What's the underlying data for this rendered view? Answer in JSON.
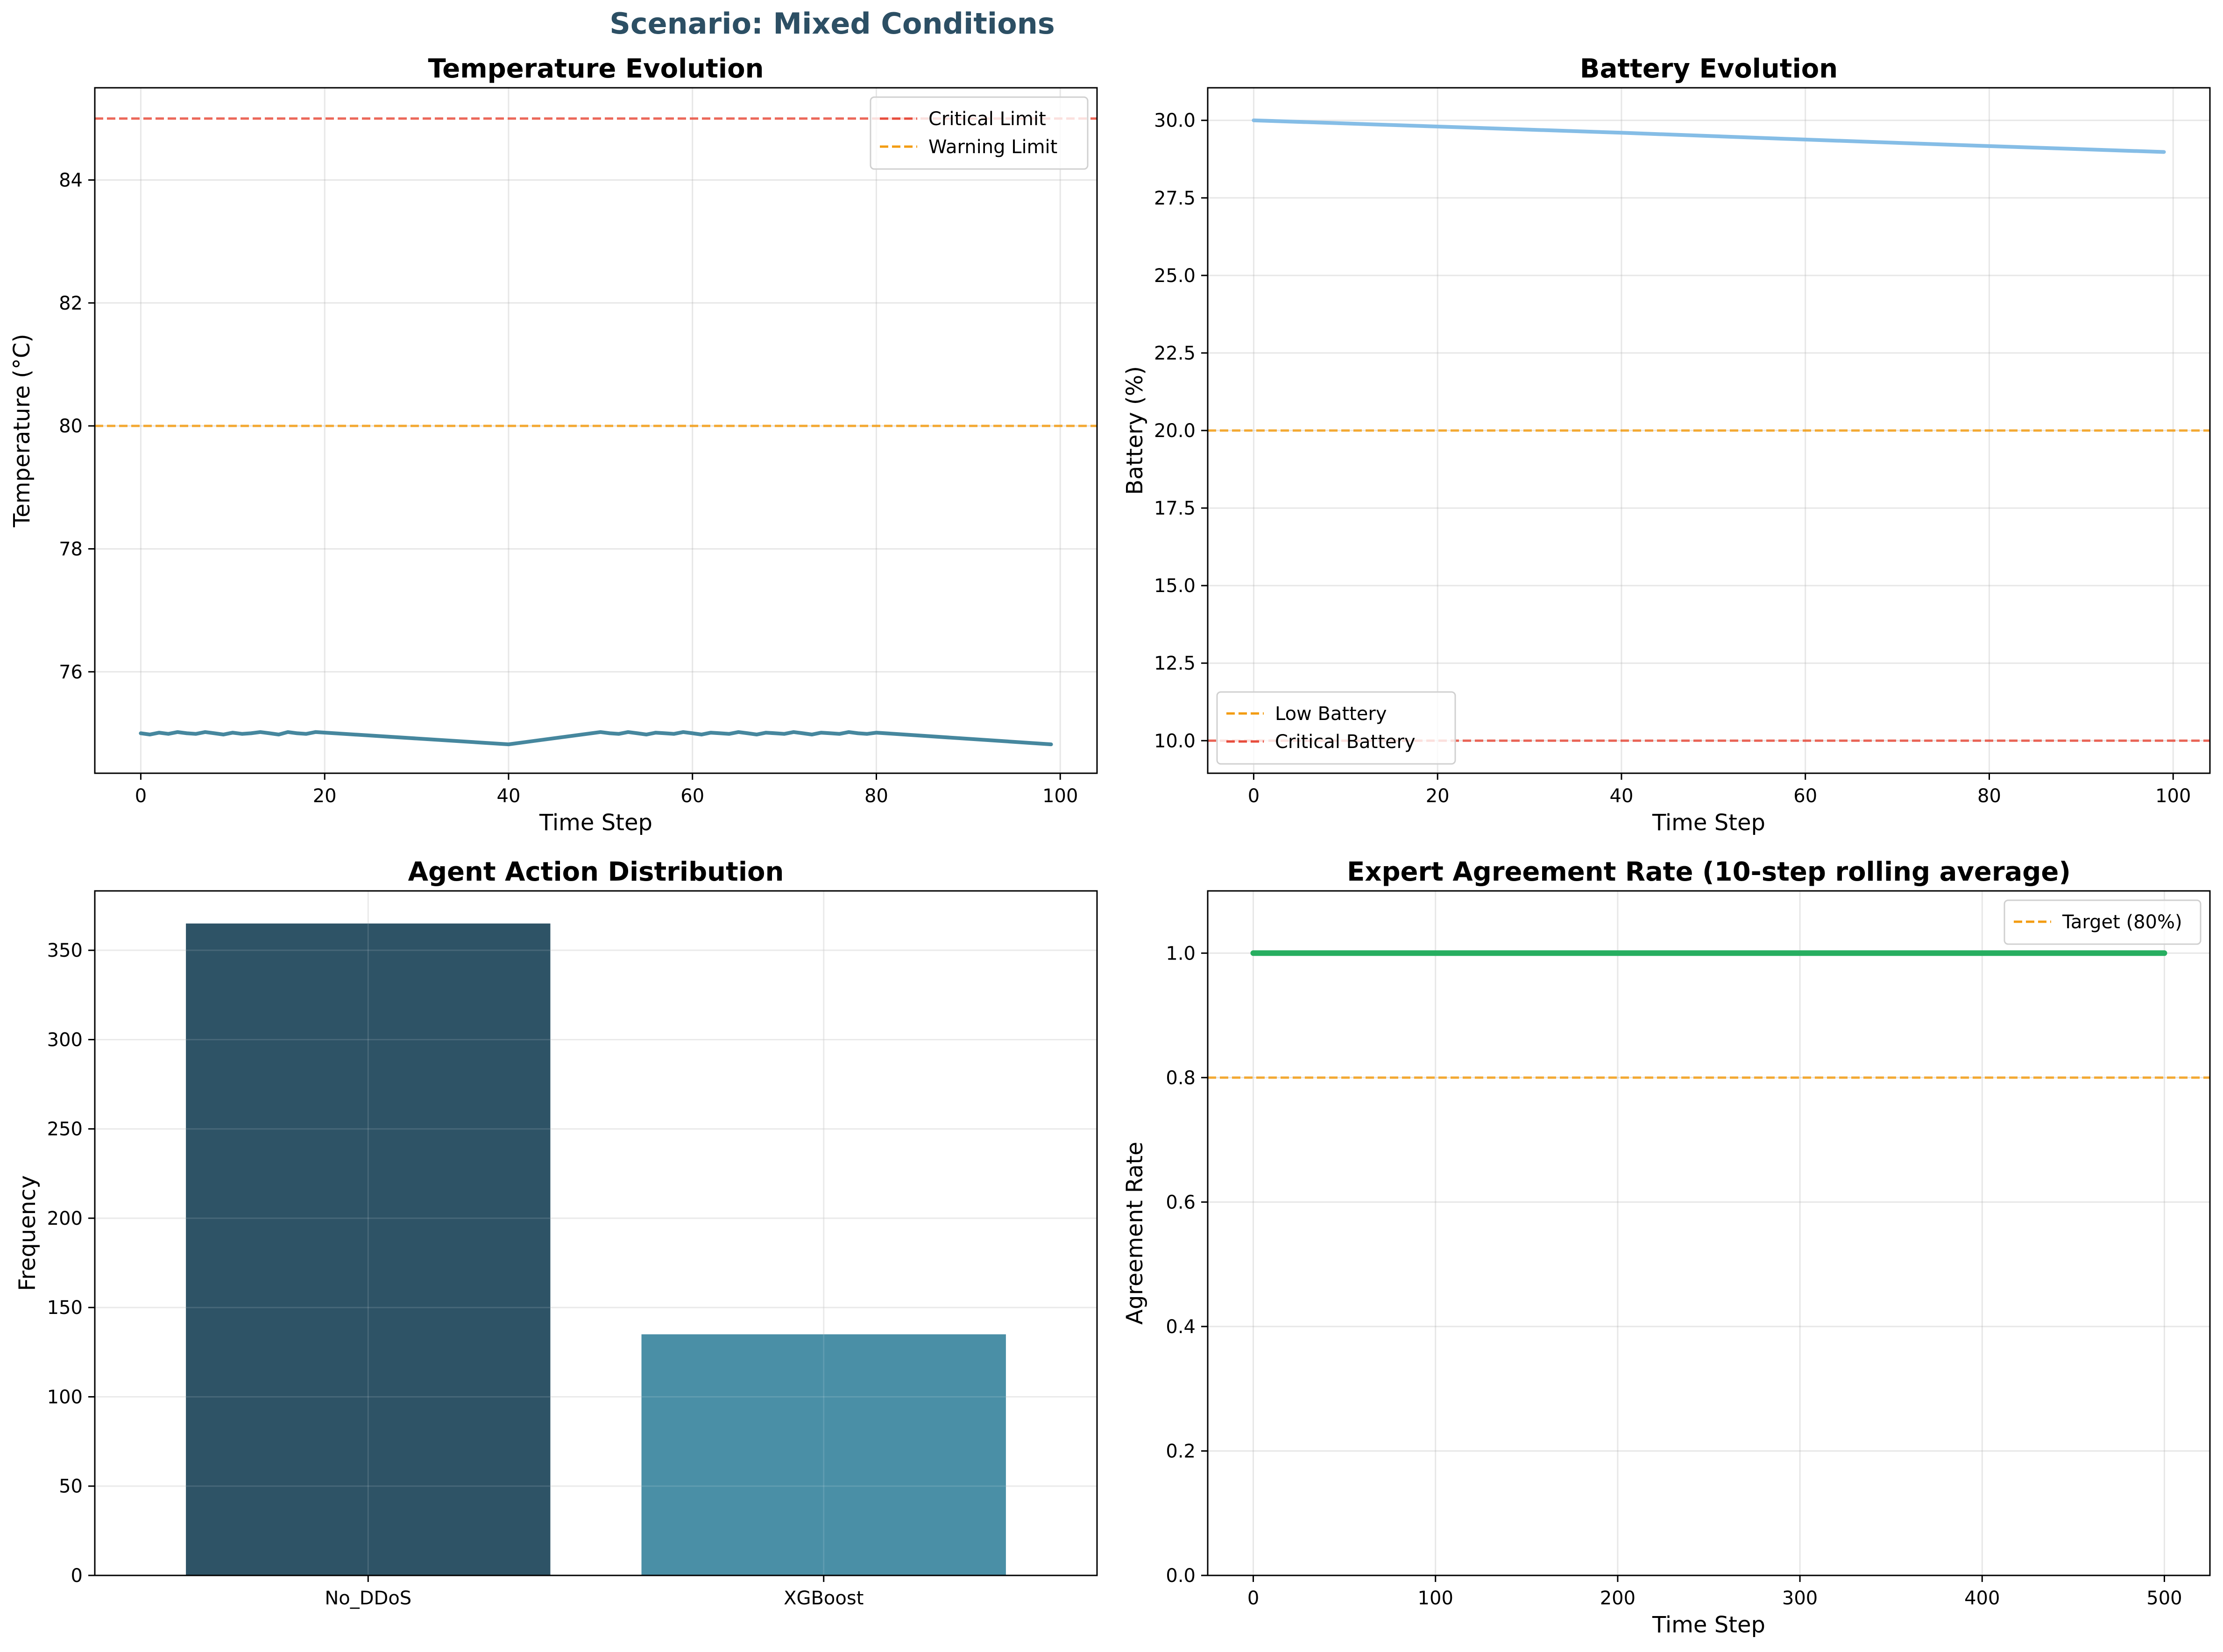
{
  "suptitle": "Scenario: Mixed Conditions",
  "colors": {
    "title": "#2c4f64",
    "critical": "#e74c3c",
    "warning": "#f39c12",
    "temp_line": "#46879e",
    "battery_line": "#85bde6",
    "bar1": "#2e5366",
    "bar2": "#4a8fa6",
    "agreement_line": "#27ae60"
  },
  "chart_data": [
    {
      "id": "temp",
      "type": "line",
      "title": "Temperature Evolution",
      "xlabel": "Time Step",
      "ylabel": "Temperature (°C)",
      "xlim": [
        -5,
        104
      ],
      "ylim": [
        74.35,
        85.5
      ],
      "xticks": [
        0,
        20,
        40,
        60,
        80,
        100
      ],
      "yticks": [
        76,
        78,
        80,
        82,
        84
      ],
      "ytick_labels": [
        "76",
        "78",
        "80",
        "82",
        "84"
      ],
      "grid": true,
      "legend_position": "upper-right",
      "hlines": [
        {
          "name": "Critical Limit",
          "y": 85,
          "color": "#e74c3c"
        },
        {
          "name": "Warning Limit",
          "y": 80,
          "color": "#f39c12"
        }
      ],
      "series": [
        {
          "color": "#46879e",
          "x": [
            0,
            1,
            2,
            3,
            4,
            5,
            6,
            7,
            8,
            9,
            10,
            11,
            12,
            13,
            14,
            15,
            16,
            17,
            18,
            19,
            40,
            50,
            51,
            52,
            53,
            54,
            55,
            56,
            57,
            58,
            59,
            60,
            61,
            62,
            63,
            64,
            65,
            66,
            67,
            68,
            69,
            70,
            71,
            72,
            73,
            74,
            75,
            76,
            77,
            78,
            79,
            80,
            99
          ],
          "y": [
            75.0,
            74.98,
            75.01,
            74.99,
            75.02,
            75.0,
            74.99,
            75.02,
            75.0,
            74.98,
            75.01,
            74.99,
            75.0,
            75.02,
            75.0,
            74.98,
            75.02,
            75.0,
            74.99,
            75.02,
            74.82,
            75.02,
            75.0,
            74.99,
            75.02,
            75.0,
            74.98,
            75.01,
            75.0,
            74.99,
            75.02,
            75.0,
            74.98,
            75.01,
            75.0,
            74.99,
            75.02,
            75.0,
            74.98,
            75.01,
            75.0,
            74.99,
            75.02,
            75.0,
            74.98,
            75.01,
            75.0,
            74.99,
            75.02,
            75.0,
            74.99,
            75.01,
            74.82
          ]
        }
      ]
    },
    {
      "id": "battery",
      "type": "line",
      "title": "Battery Evolution",
      "xlabel": "Time Step",
      "ylabel": "Battery (%)",
      "xlim": [
        -5,
        104
      ],
      "ylim": [
        8.95,
        31.05
      ],
      "xticks": [
        0,
        20,
        40,
        60,
        80,
        100
      ],
      "yticks": [
        10,
        12.5,
        15,
        17.5,
        20,
        22.5,
        25,
        27.5,
        30
      ],
      "ytick_labels": [
        "10.0",
        "12.5",
        "15.0",
        "17.5",
        "20.0",
        "22.5",
        "25.0",
        "27.5",
        "30.0"
      ],
      "grid": true,
      "legend_position": "lower-left",
      "hlines": [
        {
          "name": "Low Battery",
          "y": 20,
          "color": "#f39c12"
        },
        {
          "name": "Critical Battery",
          "y": 10,
          "color": "#e74c3c"
        }
      ],
      "series": [
        {
          "color": "#85bde6",
          "x": [
            0,
            20,
            40,
            60,
            80,
            99
          ],
          "y": [
            30.0,
            29.8,
            29.6,
            29.38,
            29.17,
            28.98
          ]
        }
      ]
    },
    {
      "id": "actions",
      "type": "bar",
      "title": "Agent Action Distribution",
      "xlabel": "",
      "ylabel": "Frequency",
      "categories": [
        "No_DDoS",
        "XGBoost"
      ],
      "values": [
        365,
        135
      ],
      "bar_colors": [
        "#2e5366",
        "#4a8fa6"
      ],
      "xlim": [
        -0.6,
        1.6
      ],
      "ylim": [
        0,
        383.25
      ],
      "yticks": [
        0,
        50,
        100,
        150,
        200,
        250,
        300,
        350
      ],
      "ytick_labels": [
        "0",
        "50",
        "100",
        "150",
        "200",
        "250",
        "300",
        "350"
      ],
      "grid": true
    },
    {
      "id": "agreement",
      "type": "line",
      "title": "Expert Agreement Rate (10-step rolling average)",
      "xlabel": "Time Step",
      "ylabel": "Agreement Rate",
      "xlim": [
        -25,
        525
      ],
      "ylim": [
        0,
        1.1
      ],
      "xticks": [
        0,
        100,
        200,
        300,
        400,
        500
      ],
      "yticks": [
        0,
        0.2,
        0.4,
        0.6,
        0.8,
        1.0
      ],
      "ytick_labels": [
        "0.0",
        "0.2",
        "0.4",
        "0.6",
        "0.8",
        "1.0"
      ],
      "grid": true,
      "legend_position": "upper-right",
      "hlines": [
        {
          "name": "Target (80%)",
          "y": 0.8,
          "color": "#f39c12"
        }
      ],
      "series": [
        {
          "color": "#27ae60",
          "x": [
            0,
            500
          ],
          "y": [
            1.0,
            1.0
          ]
        }
      ]
    }
  ]
}
